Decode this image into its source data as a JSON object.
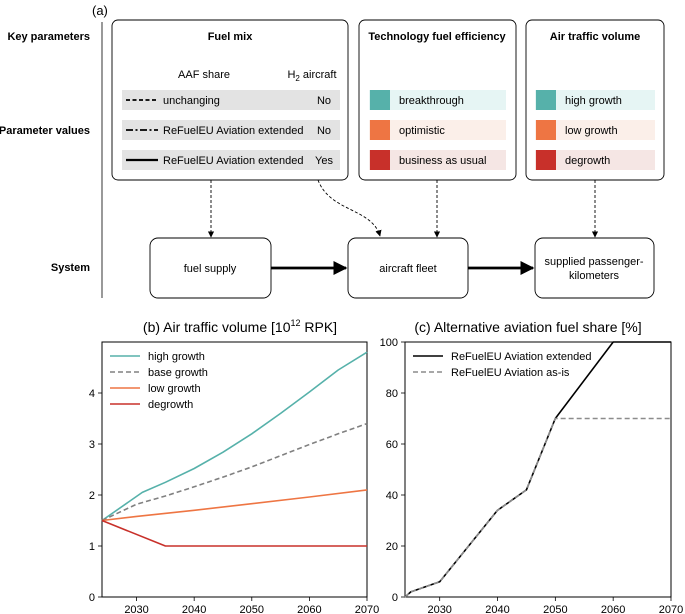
{
  "panel_a": {
    "label": "(a)",
    "row_labels": [
      "Key parameters",
      "Parameter values",
      "System"
    ],
    "fuel_mix": {
      "title": "Fuel mix",
      "col_aaf": "AAF share",
      "col_h2_main": "H",
      "col_h2_sub": "2",
      "col_h2_rest": " aircraft",
      "rows": [
        {
          "line": "dashed",
          "label": "unchanging",
          "h2": "No"
        },
        {
          "line": "dashdot",
          "label": "ReFuelEU Aviation extended",
          "h2": "No"
        },
        {
          "line": "solid",
          "label": "ReFuelEU Aviation extended",
          "h2": "Yes"
        }
      ]
    },
    "efficiency": {
      "title": "Technology fuel efficiency",
      "items": [
        {
          "label": "breakthrough",
          "color": "#56b1aa",
          "bg": "#e6f5f4"
        },
        {
          "label": "optimistic",
          "color": "#ee7543",
          "bg": "#fbefe9"
        },
        {
          "label": "business as usual",
          "color": "#c8302a",
          "bg": "#f5e6e4"
        }
      ]
    },
    "traffic": {
      "title": "Air traffic volume",
      "items": [
        {
          "label": "high growth",
          "color": "#56b1aa",
          "bg": "#e6f5f4"
        },
        {
          "label": "low growth",
          "color": "#ee7543",
          "bg": "#fbefe9"
        },
        {
          "label": "degrowth",
          "color": "#c8302a",
          "bg": "#f5e6e4"
        }
      ]
    },
    "system": {
      "fuel_supply": "fuel supply",
      "aircraft_fleet": "aircraft fleet",
      "pkm_line1": "supplied passenger-",
      "pkm_line2": "kilometers"
    }
  },
  "chart_data": [
    {
      "type": "line",
      "title_pre": "(b) Air traffic volume [10",
      "title_sup": "12",
      "title_post": " RPK]",
      "xlim": [
        2024,
        2070
      ],
      "ylim": [
        0,
        5
      ],
      "xticks": [
        2030,
        2040,
        2050,
        2060,
        2070
      ],
      "yticks": [
        0,
        1,
        2,
        3,
        4
      ],
      "legend_position": "top-left",
      "series": [
        {
          "name": "high growth",
          "color": "#56b1aa",
          "dash": "solid",
          "x": [
            2024,
            2031,
            2035,
            2040,
            2045,
            2050,
            2055,
            2060,
            2065,
            2070
          ],
          "y": [
            1.5,
            2.05,
            2.25,
            2.52,
            2.84,
            3.2,
            3.6,
            4.02,
            4.45,
            4.8
          ]
        },
        {
          "name": "base growth",
          "color": "#808080",
          "dash": "dashed",
          "x": [
            2024,
            2030,
            2035,
            2040,
            2045,
            2050,
            2055,
            2060,
            2065,
            2070
          ],
          "y": [
            1.5,
            1.82,
            1.98,
            2.16,
            2.35,
            2.55,
            2.77,
            2.99,
            3.2,
            3.4
          ]
        },
        {
          "name": "low growth",
          "color": "#ee7543",
          "dash": "solid",
          "x": [
            2024,
            2030,
            2040,
            2050,
            2060,
            2070
          ],
          "y": [
            1.5,
            1.58,
            1.7,
            1.83,
            1.96,
            2.1
          ]
        },
        {
          "name": "degrowth",
          "color": "#c8302a",
          "dash": "solid",
          "x": [
            2024,
            2035,
            2070
          ],
          "y": [
            1.5,
            1.0,
            1.0
          ]
        }
      ]
    },
    {
      "type": "line",
      "title": "(c) Alternative aviation fuel share [%]",
      "xlim": [
        2024,
        2070
      ],
      "ylim": [
        0,
        100
      ],
      "xticks": [
        2030,
        2040,
        2050,
        2060,
        2070
      ],
      "yticks": [
        0,
        20,
        40,
        60,
        80,
        100
      ],
      "legend_position": "top-left",
      "series": [
        {
          "name": "ReFuelEU Aviation extended",
          "color": "#000000",
          "dash": "solid",
          "x": [
            2024,
            2025,
            2030,
            2035,
            2040,
            2045,
            2050,
            2060,
            2070
          ],
          "y": [
            0,
            2,
            6,
            20,
            34,
            42,
            70,
            100,
            100
          ]
        },
        {
          "name": "ReFuelEU Aviation as-is",
          "color": "#8c8c8c",
          "dash": "dashed",
          "x": [
            2024,
            2025,
            2030,
            2035,
            2040,
            2045,
            2050,
            2060,
            2070
          ],
          "y": [
            0,
            2,
            6,
            20,
            34,
            42,
            70,
            70,
            70
          ]
        }
      ]
    }
  ]
}
